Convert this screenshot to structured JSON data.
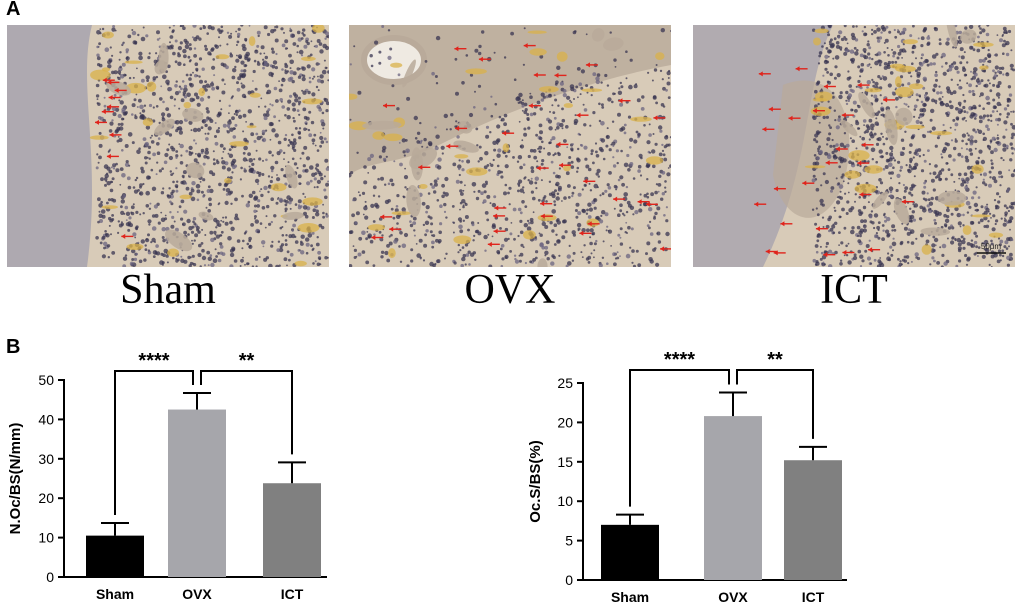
{
  "panel_labels": {
    "a": "A",
    "b": "B"
  },
  "micrographs": [
    {
      "label": "Sham"
    },
    {
      "label": "OVX"
    },
    {
      "label": "ICT",
      "scale_bar": "50μm"
    }
  ],
  "colors": {
    "tissue_bg": "#d8cbb8",
    "bone": "#b9aa9a",
    "cartilage": "#a7a3ae",
    "cell": "#3a3552",
    "fat": "#d9b24a",
    "arrow": "#e0241c",
    "sham_bar": "#000000",
    "ovx_bar": "#a6a6ab",
    "ict_bar": "#808080"
  },
  "chart_data": [
    {
      "type": "bar",
      "categories": [
        "Sham",
        "OVX",
        "ICT"
      ],
      "values": [
        10.5,
        42.5,
        23.8
      ],
      "errors": [
        3.2,
        4.2,
        5.3
      ],
      "ylabel": "N.Oc/BS(N/mm)",
      "ylim": [
        0,
        50
      ],
      "yticks": [
        0,
        10,
        20,
        30,
        40,
        50
      ],
      "bar_colors": [
        "#000000",
        "#a6a6ab",
        "#808080"
      ],
      "significance": [
        {
          "from": 0,
          "to": 1,
          "label": "****"
        },
        {
          "from": 1,
          "to": 2,
          "label": "**"
        }
      ]
    },
    {
      "type": "bar",
      "categories": [
        "Sham",
        "OVX",
        "ICT"
      ],
      "values": [
        7.0,
        20.8,
        15.2
      ],
      "errors": [
        1.3,
        3.0,
        1.7
      ],
      "ylabel": "Oc.S/BS(%)",
      "ylim": [
        0,
        25
      ],
      "yticks": [
        0,
        5,
        10,
        15,
        20,
        25
      ],
      "bar_colors": [
        "#000000",
        "#a6a6ab",
        "#808080"
      ],
      "significance": [
        {
          "from": 0,
          "to": 1,
          "label": "****"
        },
        {
          "from": 1,
          "to": 2,
          "label": "**"
        }
      ]
    }
  ]
}
